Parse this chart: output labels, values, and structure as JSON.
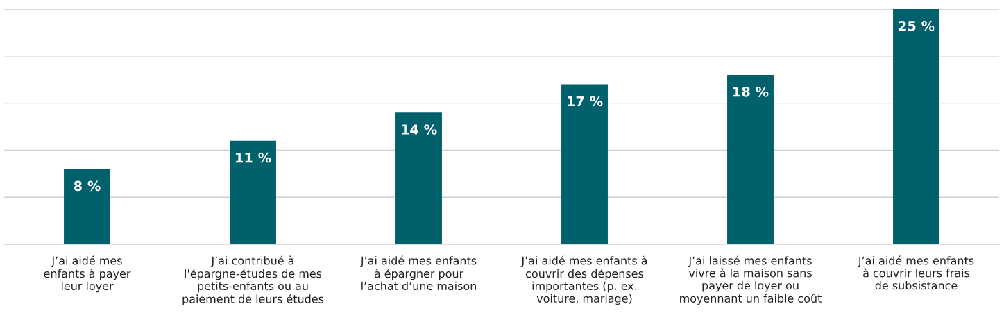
{
  "chart_data": {
    "type": "bar",
    "categories": [
      "J’ai aidé mes\nenfants à payer\nleur loyer",
      "J’ai contribué à\nl'épargne-études de mes\npetits-enfants ou au\npaiement de leurs études",
      "J’ai aidé mes enfants\nà épargner pour\nl’achat d’une maison",
      "J’ai aidé mes enfants à\ncouvrir des dépenses\nimportantes (p. ex.\nvoiture, mariage)",
      "J’ai laissé mes enfants\nvivre à la maison sans\npayer de loyer ou\nmoyennant un faible coût",
      "J’ai aidé mes enfants\nà couvrir leurs frais\nde subsistance"
    ],
    "values": [
      8,
      11,
      14,
      17,
      18,
      25
    ],
    "color": "#00606b",
    "value_labels": [
      "8 %",
      "11 %",
      "14 %",
      "17 %",
      "18 %",
      "25 %"
    ],
    "ylim": [
      0,
      25
    ],
    "yticks": [
      {
        "value": 0,
        "label": null
      },
      {
        "value": 5,
        "label": null
      },
      {
        "value": 10,
        "label": null
      },
      {
        "value": 15,
        "label": null
      },
      {
        "value": 20,
        "label": null
      },
      {
        "value": 25,
        "label": null
      }
    ],
    "grid": "y",
    "tick_labels": "x"
  }
}
